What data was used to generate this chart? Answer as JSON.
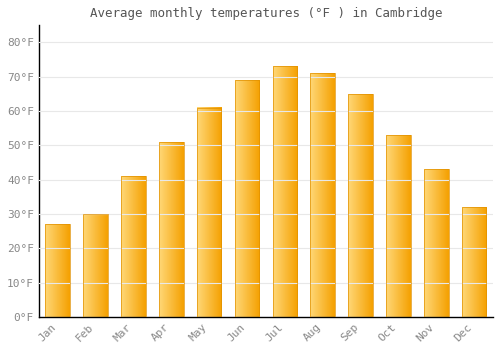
{
  "title": "Average monthly temperatures (°F ) in Cambridge",
  "months": [
    "Jan",
    "Feb",
    "Mar",
    "Apr",
    "May",
    "Jun",
    "Jul",
    "Aug",
    "Sep",
    "Oct",
    "Nov",
    "Dec"
  ],
  "values": [
    27,
    30,
    41,
    51,
    61,
    69,
    73,
    71,
    65,
    53,
    43,
    32
  ],
  "bar_color_light": "#FFD060",
  "bar_color_dark": "#F5A800",
  "background_color": "#FFFFFF",
  "grid_color": "#E8E8E8",
  "tick_label_color": "#888888",
  "title_color": "#555555",
  "spine_color": "#000000",
  "yticks": [
    0,
    10,
    20,
    30,
    40,
    50,
    60,
    70,
    80
  ],
  "ytick_labels": [
    "0°F",
    "10°F",
    "20°F",
    "30°F",
    "40°F",
    "50°F",
    "60°F",
    "70°F",
    "80°F"
  ],
  "ylim": [
    0,
    85
  ],
  "font_family": "monospace",
  "bar_width": 0.65
}
